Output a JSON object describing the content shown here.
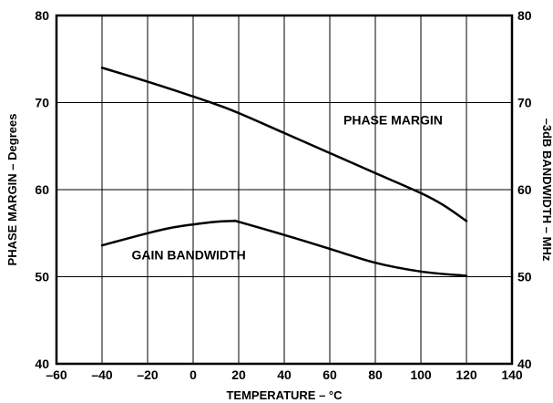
{
  "chart_data": {
    "type": "line",
    "title": "",
    "xlabel": "TEMPERATURE – °C",
    "ylabel_left": "PHASE MARGIN – Degrees",
    "ylabel_right": "–3dB BANDWIDTH – MHz",
    "xlim": [
      -60,
      140
    ],
    "ylim_left": [
      40,
      80
    ],
    "ylim_right": [
      40,
      80
    ],
    "x_ticks": [
      "–60",
      "–40",
      "–20",
      "0",
      "20",
      "40",
      "60",
      "80",
      "100",
      "120",
      "140"
    ],
    "y_ticks_left": [
      "40",
      "50",
      "60",
      "70",
      "80"
    ],
    "y_ticks_right": [
      "40",
      "50",
      "60",
      "70",
      "80"
    ],
    "grid": true,
    "series": [
      {
        "name": "PHASE MARGIN",
        "axis": "left",
        "x": [
          -40,
          -20,
          0,
          10,
          20,
          40,
          60,
          80,
          100,
          110,
          120
        ],
        "values": [
          74.0,
          72.4,
          70.7,
          69.8,
          68.8,
          66.5,
          64.2,
          61.9,
          59.6,
          58.2,
          56.4
        ]
      },
      {
        "name": "GAIN BANDWIDTH",
        "axis": "right",
        "x": [
          -40,
          -20,
          -10,
          0,
          10,
          18,
          20,
          40,
          60,
          80,
          100,
          120
        ],
        "values": [
          53.6,
          55.0,
          55.6,
          56.0,
          56.3,
          56.4,
          56.3,
          54.8,
          53.2,
          51.6,
          50.6,
          50.1
        ]
      }
    ]
  }
}
